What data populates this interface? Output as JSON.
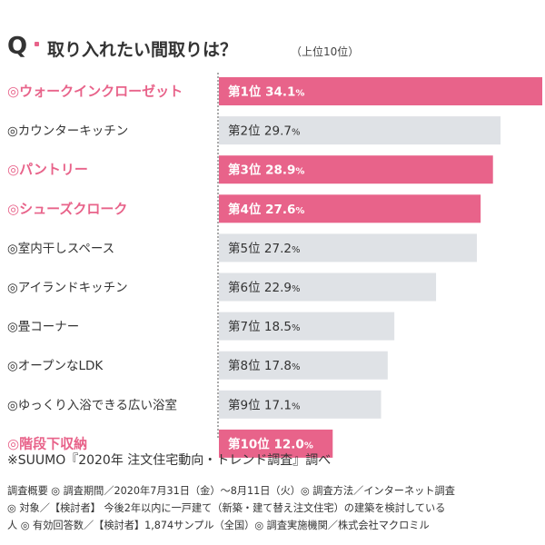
{
  "header": {
    "q_mark": "Q",
    "question": "取り入れたい間取りは？",
    "subnote": "（上位10位）"
  },
  "chart_data": {
    "type": "bar",
    "orientation": "horizontal",
    "categories": [
      "◎ウォークインクローゼット",
      "◎カウンターキッチン",
      "◎パントリー",
      "◎シューズクローク",
      "◎室内干しスペース",
      "◎アイランドキッチン",
      "◎畳コーナー",
      "◎オープンなLDK",
      "◎ゆっくり入浴できる広い浴室",
      "◎階段下収納"
    ],
    "values": [
      34.1,
      29.7,
      28.9,
      27.6,
      27.2,
      22.9,
      18.5,
      17.8,
      17.1,
      12.0
    ],
    "value_text": [
      "34.1",
      "29.7",
      "28.9",
      "27.6",
      "27.2",
      "22.9",
      "18.5",
      "17.8",
      "17.1",
      "12.0"
    ],
    "ranks": [
      "第1位",
      "第2位",
      "第3位",
      "第4位",
      "第5位",
      "第6位",
      "第7位",
      "第8位",
      "第9位",
      "第10位"
    ],
    "unit": "%",
    "highlighted": [
      true,
      false,
      true,
      true,
      false,
      false,
      false,
      false,
      false,
      true
    ],
    "xlim": [
      0,
      34.1
    ],
    "colors": {
      "highlight": "#e8638a",
      "normal": "#dfe2e6",
      "highlight_text": "#ffffff",
      "normal_text": "#333333"
    }
  },
  "footer": {
    "source": "※SUUMO『2020年 注文住宅動向・トレンド調査』調べ",
    "methodology_lines": [
      "調査概要 ◎ 調査期間／2020年7月31日（金）〜8月11日（火）◎ 調査方法／インターネット調査",
      "◎ 対象／【検討者】 今後2年以内に一戸建て（新築・建て替え注文住宅）の建築を検討している",
      "人 ◎ 有効回答数／【検討者】1,874サンプル（全国）◎ 調査実施機関／株式会社マクロミル"
    ]
  }
}
